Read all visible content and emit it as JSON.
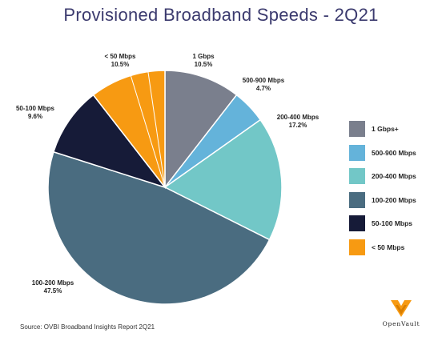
{
  "title": "Provisioned Broadband Speeds - 2Q21",
  "source": "Source: OVBI Broadband Insights Report 2Q21",
  "logo_text": "OpenVault",
  "chart_data": {
    "type": "pie",
    "title": "Provisioned Broadband Speeds - 2Q21",
    "slices": [
      {
        "name": "1 Gbps+",
        "label": "1 Gbps",
        "value": 10.5,
        "value_label": "10.5%",
        "color": "#7a7f8d"
      },
      {
        "name": "500-900 Mbps",
        "label": "500-900 Mbps",
        "value": 4.7,
        "value_label": "4.7%",
        "color": "#64b3da"
      },
      {
        "name": "200-400 Mbps",
        "label": "200-400 Mbps",
        "value": 17.2,
        "value_label": "17.2%",
        "color": "#72c7c7"
      },
      {
        "name": "100-200 Mbps",
        "label": "100-200 Mbps",
        "value": 47.5,
        "value_label": "47.5%",
        "color": "#4a6c80"
      },
      {
        "name": "50-100 Mbps",
        "label": "50-100 Mbps",
        "value": 9.6,
        "value_label": "9.6%",
        "color": "#161b38"
      },
      {
        "name": "< 50 Mbps",
        "label": "< 50 Mbps",
        "value": 10.5,
        "value_label": "10.5%",
        "color": "#f79a12"
      }
    ],
    "legend_position": "right"
  }
}
